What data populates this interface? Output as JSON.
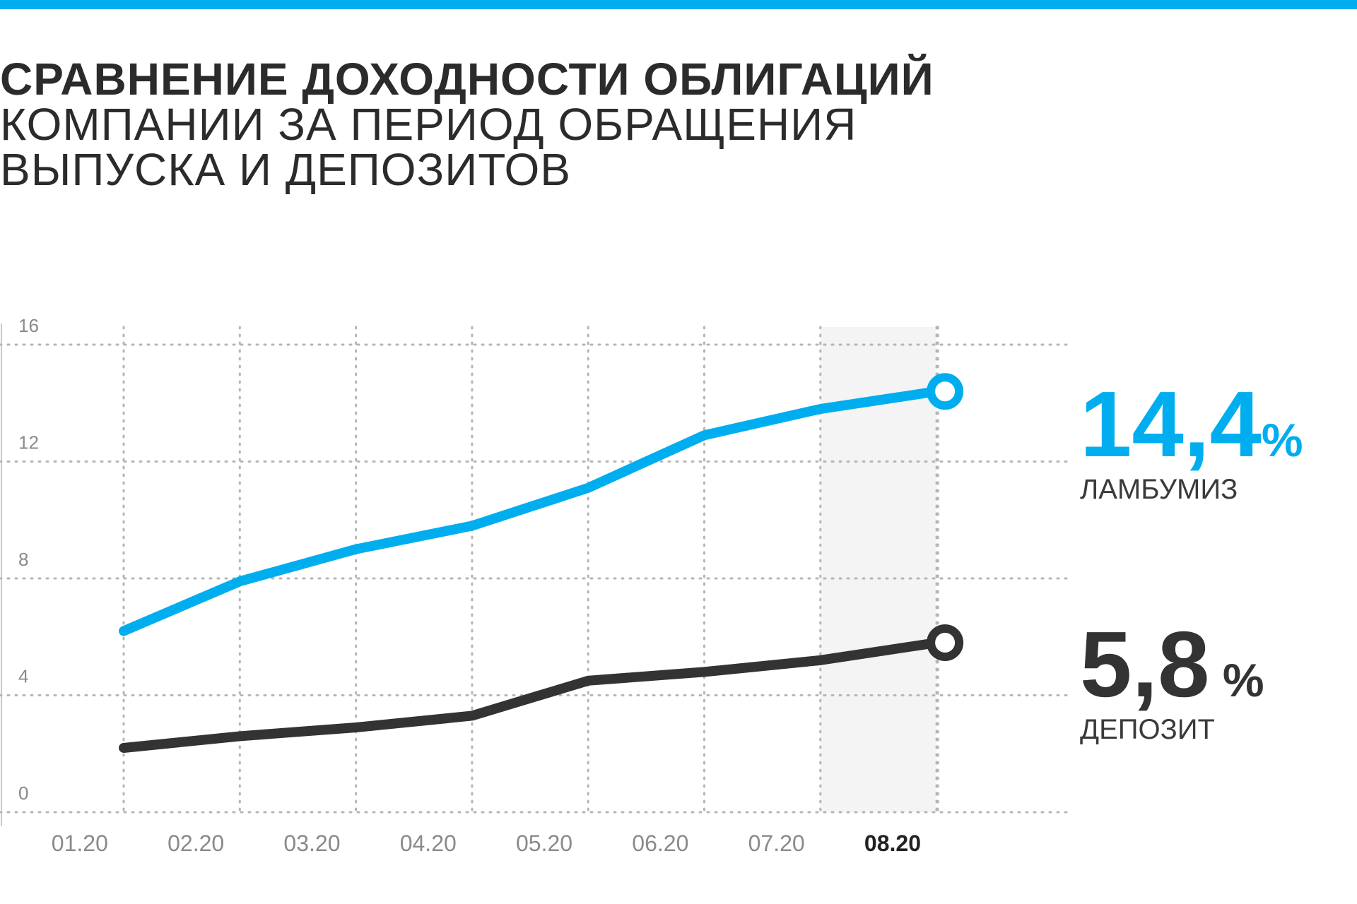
{
  "title": {
    "line1": "СРАВНЕНИЕ ДОХОДНОСТИ ОБЛИГАЦИЙ",
    "line2": "КОМПАНИИ ЗА ПЕРИОД ОБРАЩЕНИЯ",
    "line3": "ВЫПУСКА И ДЕПОЗИТОВ"
  },
  "colors": {
    "accent": "#00aeef",
    "dark": "#333333",
    "grid": "#b5b5b5",
    "axis_text": "#8a8a8a",
    "highlight_band": "#f4f4f4"
  },
  "callouts": {
    "bond": {
      "number": "14,4",
      "unit": "%",
      "label": "ЛАМБУМИЗ"
    },
    "deposit": {
      "number": "5,8",
      "unit": " %",
      "label": "ДЕПОЗИТ"
    }
  },
  "chart_data": {
    "type": "line",
    "categories": [
      "01.20",
      "02.20",
      "03.20",
      "04.20",
      "05.20",
      "06.20",
      "07.20",
      "08.20"
    ],
    "highlighted_category": "08.20",
    "y_ticks": [
      "16",
      "12",
      "8",
      "4",
      "0"
    ],
    "ylim": [
      0,
      16
    ],
    "grid": true,
    "series": [
      {
        "name": "ЛАМБУМИЗ",
        "color": "#00aeef",
        "values": [
          6.2,
          7.9,
          9.0,
          9.8,
          11.1,
          12.9,
          13.8,
          14.4
        ]
      },
      {
        "name": "ДЕПОЗИТ",
        "color": "#333333",
        "values": [
          2.2,
          2.6,
          2.9,
          3.3,
          4.5,
          4.8,
          5.2,
          5.8
        ]
      }
    ]
  }
}
